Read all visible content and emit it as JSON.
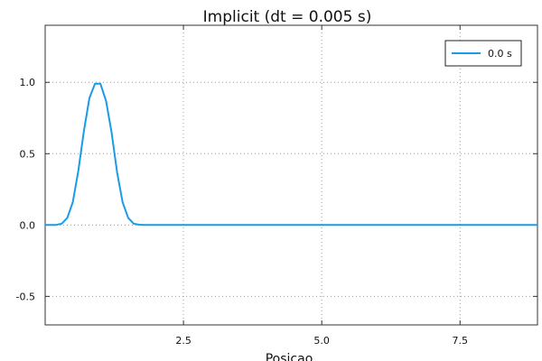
{
  "chart_data": {
    "type": "line",
    "title": "Implicit (dt = 0.005 s)",
    "xlabel": "Posicao",
    "ylabel": "",
    "xlim": [
      0,
      8.9
    ],
    "ylim": [
      -0.7,
      1.4
    ],
    "xticks": [
      2.5,
      5.0,
      7.5
    ],
    "xtick_labels": [
      "2.5",
      "5.0",
      "7.5"
    ],
    "yticks": [
      -0.5,
      0.0,
      0.5,
      1.0
    ],
    "ytick_labels": [
      "-0.5",
      "0.0",
      "0.5",
      "1.0"
    ],
    "grid": true,
    "legend_position": "top-right",
    "series": [
      {
        "name": "0.0 s",
        "color": "#1a9be6",
        "x": [
          0.0,
          0.1,
          0.2,
          0.3,
          0.4,
          0.5,
          0.6,
          0.7,
          0.8,
          0.9,
          1.0,
          1.1,
          1.2,
          1.3,
          1.4,
          1.5,
          1.6,
          1.7,
          1.8,
          1.9,
          2.0,
          2.5,
          3.0,
          3.5,
          4.0,
          4.5,
          5.0,
          5.5,
          6.0,
          6.5,
          7.0,
          7.5,
          8.0,
          8.5,
          8.9
        ],
        "y": [
          0.0,
          0.0,
          0.001,
          0.01,
          0.05,
          0.16,
          0.38,
          0.66,
          0.89,
          0.99,
          0.99,
          0.87,
          0.65,
          0.37,
          0.16,
          0.05,
          0.01,
          0.002,
          0.0,
          0.0,
          0.0,
          0.0,
          0.0,
          0.0,
          0.0,
          0.0,
          0.0,
          0.0,
          0.0,
          0.0,
          0.0,
          0.0,
          0.0,
          0.0,
          0.0
        ]
      }
    ]
  }
}
